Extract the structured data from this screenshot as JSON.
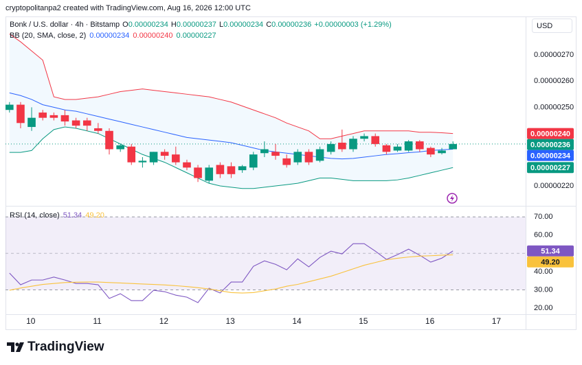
{
  "page": {
    "attribution": "cryptopolitanpa2 created with TradingView.com, Aug 16, 2026 12:00 UTC",
    "currency": "USD",
    "logo": "TradingView"
  },
  "chart_data": [
    {
      "type": "candlestick",
      "title": "Bonk / U.S. dollar · 4h · Bitstamp",
      "ohlc_legend": [
        {
          "key": "O",
          "value": "0.00000234"
        },
        {
          "key": "H",
          "value": "0.00000237"
        },
        {
          "key": "L",
          "value": "0.00000234"
        },
        {
          "key": "C",
          "value": "0.00000236"
        }
      ],
      "change": "+0.00000003 (+1.29%)",
      "x": [
        9.68,
        9.847,
        10.013,
        10.18,
        10.347,
        10.513,
        10.68,
        10.847,
        11.013,
        11.18,
        11.347,
        11.513,
        11.68,
        11.847,
        12.013,
        12.18,
        12.347,
        12.513,
        12.68,
        12.847,
        13.013,
        13.18,
        13.347,
        13.513,
        13.68,
        13.847,
        14.013,
        14.18,
        14.347,
        14.513,
        14.68,
        14.847,
        15.013,
        15.18,
        15.347,
        15.513,
        15.68,
        15.847,
        16.013,
        16.18,
        16.347
      ],
      "open": [
        2.49e-06,
        2.51e-06,
        2.425e-06,
        2.48e-06,
        2.47e-06,
        2.47e-06,
        2.45e-06,
        2.45e-06,
        2.42e-06,
        2.41e-06,
        2.34e-06,
        2.35e-06,
        2.29e-06,
        2.29e-06,
        2.33e-06,
        2.32e-06,
        2.29e-06,
        2.27e-06,
        2.22e-06,
        2.28e-06,
        2.275e-06,
        2.26e-06,
        2.27e-06,
        2.325e-06,
        2.33e-06,
        2.305e-06,
        2.29e-06,
        2.33e-06,
        2.296e-06,
        2.33e-06,
        2.365e-06,
        2.34e-06,
        2.38e-06,
        2.39e-06,
        2.355e-06,
        2.335e-06,
        2.335e-06,
        2.37e-06,
        2.345e-06,
        2.325e-06,
        2.34e-06
      ],
      "high": [
        2.52e-06,
        2.52e-06,
        2.5e-06,
        2.49e-06,
        2.48e-06,
        2.49e-06,
        2.46e-06,
        2.46e-06,
        2.44e-06,
        2.42e-06,
        2.36e-06,
        2.36e-06,
        2.31e-06,
        2.33e-06,
        2.34e-06,
        2.35e-06,
        2.3e-06,
        2.28e-06,
        2.28e-06,
        2.29e-06,
        2.29e-06,
        2.28e-06,
        2.33e-06,
        2.37e-06,
        2.36e-06,
        2.32e-06,
        2.34e-06,
        2.34e-06,
        2.35e-06,
        2.37e-06,
        2.415e-06,
        2.39e-06,
        2.4e-06,
        2.4e-06,
        2.36e-06,
        2.36e-06,
        2.375e-06,
        2.375e-06,
        2.35e-06,
        2.345e-06,
        2.37e-06
      ],
      "low": [
        2.48e-06,
        2.42e-06,
        2.41e-06,
        2.45e-06,
        2.45e-06,
        2.43e-06,
        2.42e-06,
        2.41e-06,
        2.4e-06,
        2.32e-06,
        2.33e-06,
        2.28e-06,
        2.27e-06,
        2.28e-06,
        2.3e-06,
        2.28e-06,
        2.26e-06,
        2.215e-06,
        2.21e-06,
        2.23e-06,
        2.23e-06,
        2.25e-06,
        2.26e-06,
        2.31e-06,
        2.3e-06,
        2.27e-06,
        2.28e-06,
        2.28e-06,
        2.29e-06,
        2.32e-06,
        2.33e-06,
        2.33e-06,
        2.37e-06,
        2.35e-06,
        2.32e-06,
        2.33e-06,
        2.33e-06,
        2.33e-06,
        2.31e-06,
        2.32e-06,
        2.34e-06
      ],
      "close": [
        2.51e-06,
        2.44e-06,
        2.46e-06,
        2.46e-06,
        2.46e-06,
        2.446e-06,
        2.43e-06,
        2.43e-06,
        2.41e-06,
        2.34e-06,
        2.355e-06,
        2.29e-06,
        2.296e-06,
        2.33e-06,
        2.315e-06,
        2.29e-06,
        2.27e-06,
        2.23e-06,
        2.27e-06,
        2.245e-06,
        2.245e-06,
        2.275e-06,
        2.32e-06,
        2.34e-06,
        2.315e-06,
        2.28e-06,
        2.33e-06,
        2.29e-06,
        2.34e-06,
        2.36e-06,
        2.34e-06,
        2.38e-06,
        2.39e-06,
        2.36e-06,
        2.33e-06,
        2.35e-06,
        2.37e-06,
        2.34e-06,
        2.32e-06,
        2.335e-06,
        2.36e-06
      ],
      "up_color": "#089981",
      "down_color": "#f23645",
      "last_label": "0.00000236",
      "price_line": true,
      "indicator": {
        "title": "BB (20, SMA, close, 2)",
        "fill": "#2196f3",
        "series": [
          {
            "color": "#2962ff",
            "label": "0.00000234",
            "values": [
              2.555e-06,
              2.545e-06,
              2.53e-06,
              2.51e-06,
              2.5e-06,
              2.49e-06,
              2.485e-06,
              2.475e-06,
              2.465e-06,
              2.455e-06,
              2.445e-06,
              2.435e-06,
              2.425e-06,
              2.415e-06,
              2.405e-06,
              2.395e-06,
              2.385e-06,
              2.38e-06,
              2.375e-06,
              2.37e-06,
              2.365e-06,
              2.355e-06,
              2.345e-06,
              2.335e-06,
              2.33e-06,
              2.325e-06,
              2.32e-06,
              2.315e-06,
              2.31e-06,
              2.305e-06,
              2.303e-06,
              2.305e-06,
              2.31e-06,
              2.315e-06,
              2.32e-06,
              2.323e-06,
              2.327e-06,
              2.33e-06,
              2.335e-06,
              2.338e-06,
              2.34e-06
            ]
          },
          {
            "color": "#f23645",
            "label": "0.00000240",
            "values": [
              2.78e-06,
              2.75e-06,
              2.715e-06,
              2.68e-06,
              2.54e-06,
              2.53e-06,
              2.53e-06,
              2.535e-06,
              2.54e-06,
              2.55e-06,
              2.56e-06,
              2.565e-06,
              2.57e-06,
              2.565e-06,
              2.56e-06,
              2.555e-06,
              2.55e-06,
              2.545e-06,
              2.54e-06,
              2.53e-06,
              2.52e-06,
              2.505e-06,
              2.49e-06,
              2.475e-06,
              2.46e-06,
              2.44e-06,
              2.425e-06,
              2.41e-06,
              2.38e-06,
              2.38e-06,
              2.39e-06,
              2.4e-06,
              2.41e-06,
              2.41e-06,
              2.41e-06,
              2.41e-06,
              2.41e-06,
              2.405e-06,
              2.405e-06,
              2.403e-06,
              2.4e-06
            ]
          },
          {
            "color": "#089981",
            "label": "0.00000227",
            "values": [
              2.328e-06,
              2.328e-06,
              2.335e-06,
              2.38e-06,
              2.415e-06,
              2.425e-06,
              2.42e-06,
              2.41e-06,
              2.4e-06,
              2.38e-06,
              2.36e-06,
              2.34e-06,
              2.32e-06,
              2.305e-06,
              2.29e-06,
              2.27e-06,
              2.25e-06,
              2.23e-06,
              2.21e-06,
              2.2e-06,
              2.195e-06,
              2.19e-06,
              2.19e-06,
              2.195e-06,
              2.2e-06,
              2.205e-06,
              2.21e-06,
              2.22e-06,
              2.23e-06,
              2.23e-06,
              2.225e-06,
              2.22e-06,
              2.22e-06,
              2.22e-06,
              2.22e-06,
              2.223e-06,
              2.23e-06,
              2.24e-06,
              2.25e-06,
              2.26e-06,
              2.27e-06
            ]
          }
        ]
      },
      "xlim": [
        9.62,
        17.44
      ],
      "ylim": [
        2.124e-06,
        2.831e-06
      ],
      "yticks": [
        {
          "value": 2.2e-06,
          "label": "0.00000220"
        },
        {
          "value": 2.5e-06,
          "label": "0.00000250"
        },
        {
          "value": 2.6e-06,
          "label": "0.00000260"
        },
        {
          "value": 2.7e-06,
          "label": "0.00000270"
        }
      ]
    },
    {
      "type": "line",
      "title": "RSI (14, close)",
      "x": [
        9.68,
        9.847,
        10.013,
        10.18,
        10.347,
        10.513,
        10.68,
        10.847,
        11.013,
        11.18,
        11.347,
        11.513,
        11.68,
        11.847,
        12.013,
        12.18,
        12.347,
        12.513,
        12.68,
        12.847,
        13.013,
        13.18,
        13.347,
        13.513,
        13.68,
        13.847,
        14.013,
        14.18,
        14.347,
        14.513,
        14.68,
        14.847,
        15.013,
        15.18,
        15.347,
        15.513,
        15.68,
        15.847,
        16.013,
        16.18,
        16.347
      ],
      "series": [
        {
          "color": "#7e57c2",
          "label": "51.34",
          "values": [
            39.2,
            32.8,
            35.4,
            35.4,
            37,
            35.4,
            33.5,
            33.5,
            32.8,
            25.3,
            27.9,
            24.1,
            24.1,
            29.8,
            29,
            27.1,
            26,
            23,
            30.9,
            28.3,
            34.3,
            34.3,
            42.9,
            45.9,
            44,
            41,
            47,
            42.6,
            47.8,
            51.2,
            49.7,
            55.3,
            55.3,
            51.2,
            46.7,
            49.3,
            52.3,
            49,
            45.2,
            47.4,
            51.34
          ]
        },
        {
          "color": "#f9c23c",
          "label": "49.20",
          "values": [
            29.8,
            31,
            32,
            33,
            33.5,
            34,
            34.2,
            34.3,
            34.3,
            34,
            33.8,
            33.5,
            33.2,
            33,
            32.7,
            32.3,
            31.8,
            31.2,
            30.5,
            29.5,
            28.5,
            28.3,
            28.5,
            29.5,
            30.5,
            32,
            33,
            34.5,
            36,
            37.5,
            39.5,
            41.5,
            43.5,
            45,
            46.5,
            47.3,
            48,
            48.5,
            48.7,
            49,
            49.2
          ]
        }
      ],
      "band": [
        30,
        70
      ],
      "band_color": "#7e57c2",
      "midline": 50,
      "xlim": [
        9.62,
        17.44
      ],
      "ylim": [
        15.9,
        75.3
      ],
      "yticks": [
        {
          "value": 20,
          "label": "20.00"
        },
        {
          "value": 30,
          "label": "30.00"
        },
        {
          "value": 40,
          "label": "40.00"
        },
        {
          "value": 50,
          "label": "50.00"
        },
        {
          "value": 60,
          "label": "60.00"
        },
        {
          "value": 70,
          "label": "70.00"
        }
      ],
      "xticks": [
        10,
        11,
        12,
        13,
        14,
        15,
        16,
        17
      ]
    }
  ]
}
